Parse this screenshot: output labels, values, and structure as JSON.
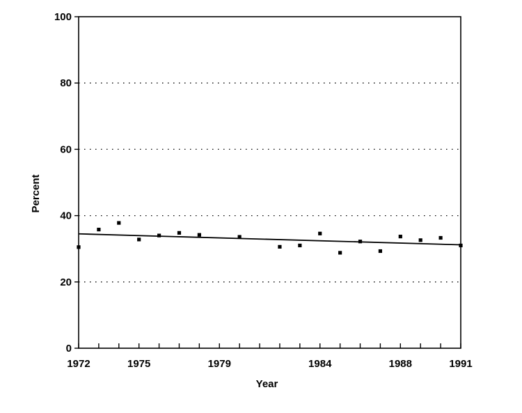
{
  "chart_data": {
    "type": "scatter",
    "xlabel": "Year",
    "ylabel": "Percent",
    "xlim": [
      1972,
      1991
    ],
    "ylim": [
      0,
      100
    ],
    "x_tick_labels": [
      "1972",
      "1975",
      "1979",
      "1984",
      "1988",
      "1991"
    ],
    "x_tick_values": [
      1972,
      1975,
      1979,
      1984,
      1988,
      1991
    ],
    "x_minor_ticks": [
      1972,
      1973,
      1974,
      1975,
      1976,
      1977,
      1978,
      1979,
      1980,
      1981,
      1982,
      1983,
      1984,
      1985,
      1986,
      1987,
      1988,
      1989,
      1990,
      1991
    ],
    "y_tick_labels": [
      "0",
      "20",
      "40",
      "60",
      "80",
      "100"
    ],
    "y_tick_values": [
      0,
      20,
      40,
      60,
      80,
      100
    ],
    "grid": "horizontal dotted",
    "series": [
      {
        "points": [
          {
            "x": 1972,
            "y": 30.5
          },
          {
            "x": 1973,
            "y": 35.8
          },
          {
            "x": 1974,
            "y": 37.8
          },
          {
            "x": 1975,
            "y": 32.8
          },
          {
            "x": 1976,
            "y": 34.0
          },
          {
            "x": 1977,
            "y": 34.8
          },
          {
            "x": 1978,
            "y": 34.2
          },
          {
            "x": 1980,
            "y": 33.6
          },
          {
            "x": 1982,
            "y": 30.6
          },
          {
            "x": 1983,
            "y": 31.0
          },
          {
            "x": 1984,
            "y": 34.6
          },
          {
            "x": 1985,
            "y": 28.8
          },
          {
            "x": 1986,
            "y": 32.2
          },
          {
            "x": 1987,
            "y": 29.3
          },
          {
            "x": 1988,
            "y": 33.7
          },
          {
            "x": 1989,
            "y": 32.6
          },
          {
            "x": 1990,
            "y": 33.3
          },
          {
            "x": 1991,
            "y": 31.0
          }
        ]
      }
    ],
    "trend_line": {
      "x": [
        1972,
        1991
      ],
      "y": [
        34.5,
        31.2
      ]
    }
  }
}
